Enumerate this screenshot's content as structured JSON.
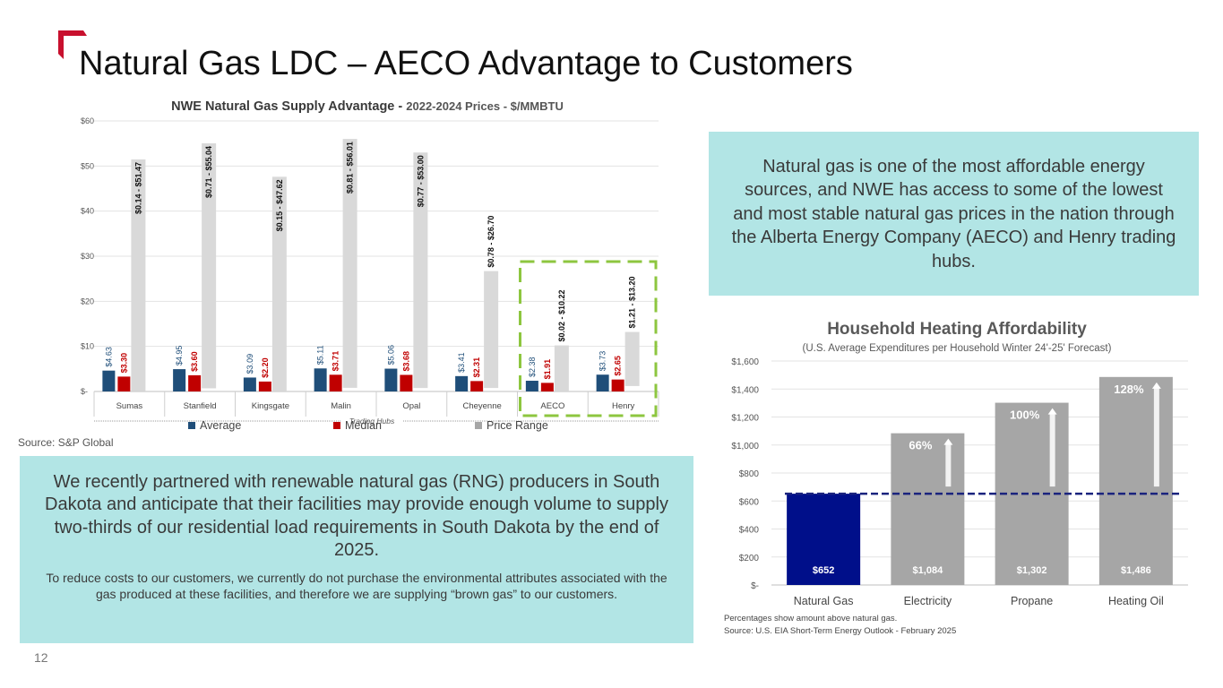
{
  "slide": {
    "title": "Natural Gas LDC – AECO Advantage to Customers",
    "page_number": "12",
    "source_left": "Source: S&P Global"
  },
  "info_box_right": {
    "text": "Natural gas is one of the most affordable energy sources, and NWE has access to some of the lowest and most stable natural gas prices in the nation through the Alberta Energy Company (AECO) and Henry trading hubs."
  },
  "info_box_left": {
    "headline": "We recently partnered with renewable natural gas (RNG) producers in South Dakota and anticipate that their facilities may provide enough volume to supply two-thirds of our residential load requirements in South Dakota by the end of 2025.",
    "body": "To reduce costs to our customers, we currently do not purchase the environmental attributes associated with the gas produced at these facilities, and therefore we are supplying “brown gas” to our customers."
  },
  "chart_data": [
    {
      "type": "bar",
      "title_bold": "NWE Natural Gas Supply Advantage - ",
      "title_rest": "2022-2024 Prices - $/MMBTU",
      "xlabel": "Trading Hubs",
      "ylabel": "",
      "ylim": [
        0,
        60
      ],
      "yticks": [
        0,
        10,
        20,
        30,
        40,
        50,
        60
      ],
      "ytick_labels": [
        "$-",
        "$10",
        "$20",
        "$30",
        "$40",
        "$50",
        "$60"
      ],
      "categories": [
        "Sumas",
        "Stanfield",
        "Kingsgate",
        "Malin",
        "Opal",
        "Cheyenne",
        "AECO",
        "Henry"
      ],
      "series": [
        {
          "name": "Average",
          "color": "#1f4e79",
          "values": [
            4.63,
            4.95,
            3.09,
            5.11,
            5.06,
            3.41,
            2.38,
            3.73
          ],
          "labels": [
            "$4.63",
            "$4.95",
            "$3.09",
            "$5.11",
            "$5.06",
            "$3.41",
            "$2.38",
            "$3.73"
          ]
        },
        {
          "name": "Median",
          "color": "#c00000",
          "values": [
            3.3,
            3.6,
            2.2,
            3.71,
            3.68,
            2.31,
            1.91,
            2.65
          ],
          "labels": [
            "$3.30",
            "$3.60",
            "$2.20",
            "$3.71",
            "$3.68",
            "$2.31",
            "$1.91",
            "$2.65"
          ]
        },
        {
          "name": "Price Range",
          "color": "#d9d9d9",
          "low": [
            0.14,
            0.71,
            0.15,
            0.81,
            0.77,
            0.78,
            0.02,
            1.21
          ],
          "high": [
            51.47,
            55.04,
            47.62,
            56.01,
            53.0,
            26.7,
            10.22,
            13.2
          ],
          "labels": [
            "$0.14 - $51.47",
            "$0.71 - $55.04",
            "$0.15 - $47.62",
            "$0.81 - $56.01",
            "$0.77 - $53.00",
            "$0.78 - $26.70",
            "$0.02 - $10.22",
            "$1.21 - $13.20"
          ]
        }
      ],
      "highlighted_categories": [
        "AECO",
        "Henry"
      ],
      "highlight_color": "#8dc63f",
      "legend": [
        "Average",
        "Median",
        "Price Range"
      ],
      "legend_position": "bottom"
    },
    {
      "type": "bar",
      "title": "Household Heating Affordability",
      "subtitle": "(U.S. Average Expenditures per Household Winter 24'-25' Forecast)",
      "categories": [
        "Natural Gas",
        "Electricity",
        "Propane",
        "Heating Oil"
      ],
      "values": [
        652,
        1084,
        1302,
        1486
      ],
      "value_labels": [
        "$652",
        "$1,084",
        "$1,302",
        "$1,486"
      ],
      "colors": [
        "#000f8a",
        "#a6a6a6",
        "#a6a6a6",
        "#a6a6a6"
      ],
      "percent_above": [
        "",
        "66%",
        "100%",
        "128%"
      ],
      "reference_line": 652,
      "reference_color": "#1a237e",
      "ylim": [
        0,
        1600
      ],
      "yticks": [
        0,
        200,
        400,
        600,
        800,
        1000,
        1200,
        1400,
        1600
      ],
      "ytick_labels": [
        "$-",
        "$200",
        "$400",
        "$600",
        "$800",
        "$1,000",
        "$1,200",
        "$1,400",
        "$1,600"
      ],
      "footnote1": "Percentages show amount above natural gas.",
      "footnote2": "Source: U.S. EIA Short-Term Energy Outlook - February 2025"
    }
  ]
}
